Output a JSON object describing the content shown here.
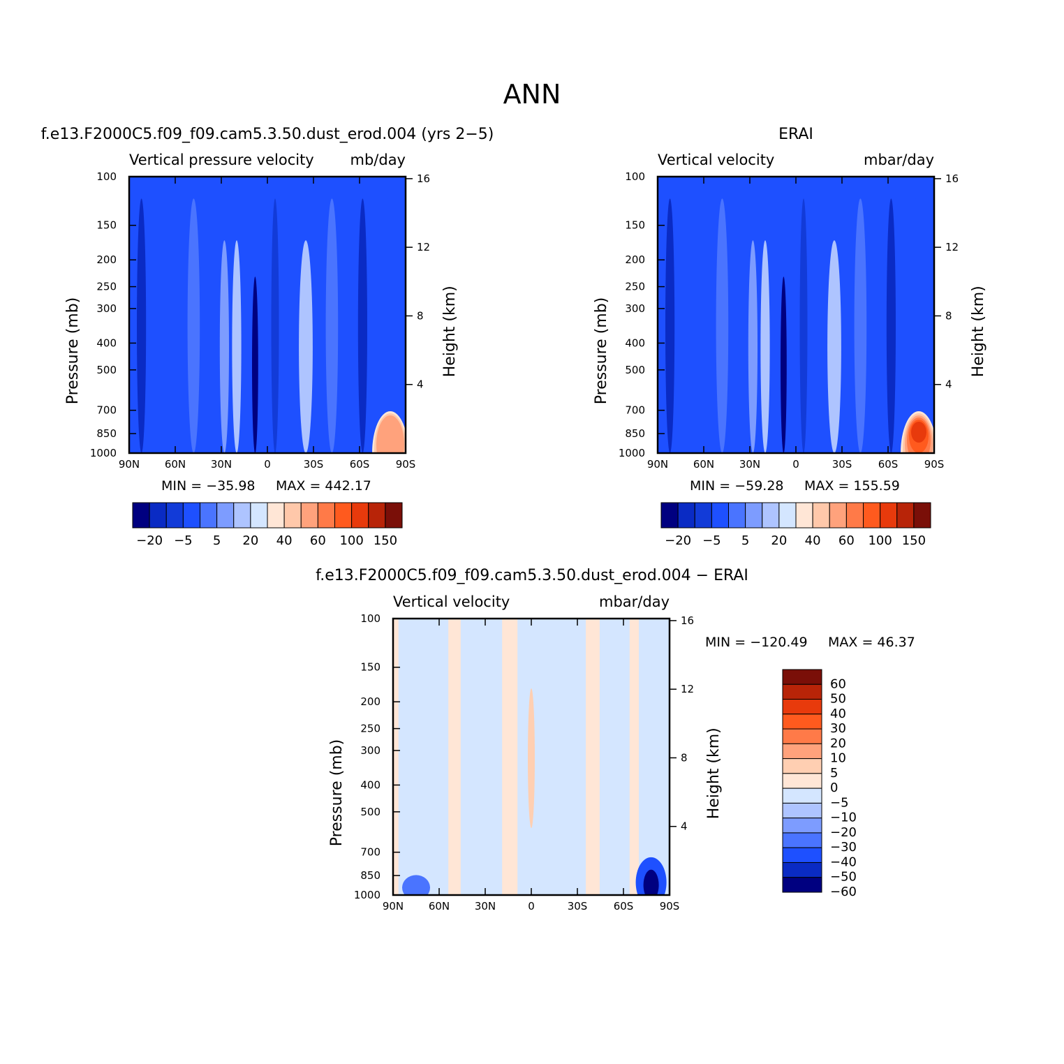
{
  "figure": {
    "title": "ANN"
  },
  "chart_data": [
    {
      "type": "heatmap",
      "id": "model",
      "title": "f.e13.F2000C5.f09_f09.cam5.3.50.dust_erod.004 (yrs 2−5)",
      "left_label": "Vertical pressure velocity",
      "right_label": "mb/day",
      "ylabel": "Pressure (mb)",
      "y2label": "Height (km)",
      "xticks": [
        "90N",
        "60N",
        "30N",
        "0",
        "30S",
        "60S",
        "90S"
      ],
      "yticks": [
        "100",
        "150",
        "200",
        "250",
        "300",
        "400",
        "500",
        "700",
        "850",
        "1000"
      ],
      "y2ticks": [
        "16",
        "12",
        "8",
        "4"
      ],
      "xlim": [
        -90,
        90
      ],
      "ylim": [
        1000,
        100
      ],
      "yscale": "log",
      "min_label": "MIN = −35.98",
      "max_label": "MAX = 442.17",
      "colorbar": {
        "orientation": "horizontal",
        "colors": [
          "#000080",
          "#0a2bc4",
          "#123bd8",
          "#1e50ff",
          "#4a74ff",
          "#7d9cff",
          "#aec4ff",
          "#d4e6ff",
          "#ffe6d6",
          "#ffc8aa",
          "#ffa27c",
          "#ff7a48",
          "#ff5a1e",
          "#e83a0c",
          "#b82408",
          "#7a0f08"
        ],
        "labels": [
          "−20",
          "−5",
          "5",
          "20",
          "40",
          "60",
          "100",
          "150"
        ]
      }
    },
    {
      "type": "heatmap",
      "id": "obs",
      "title": "ERAI",
      "left_label": "Vertical velocity",
      "right_label": "mbar/day",
      "ylabel": "Pressure (mb)",
      "y2label": "Height (km)",
      "xticks": [
        "90N",
        "60N",
        "30N",
        "0",
        "30S",
        "60S",
        "90S"
      ],
      "yticks": [
        "100",
        "150",
        "200",
        "250",
        "300",
        "400",
        "500",
        "700",
        "850",
        "1000"
      ],
      "y2ticks": [
        "16",
        "12",
        "8",
        "4"
      ],
      "xlim": [
        -90,
        90
      ],
      "ylim": [
        1000,
        100
      ],
      "yscale": "log",
      "min_label": "MIN = −59.28",
      "max_label": "MAX = 155.59",
      "colorbar": {
        "orientation": "horizontal",
        "colors": [
          "#000080",
          "#0a2bc4",
          "#123bd8",
          "#1e50ff",
          "#4a74ff",
          "#7d9cff",
          "#aec4ff",
          "#d4e6ff",
          "#ffe6d6",
          "#ffc8aa",
          "#ffa27c",
          "#ff7a48",
          "#ff5a1e",
          "#e83a0c",
          "#b82408",
          "#7a0f08"
        ],
        "labels": [
          "−20",
          "−5",
          "5",
          "20",
          "40",
          "60",
          "100",
          "150"
        ]
      }
    },
    {
      "type": "heatmap",
      "id": "diff",
      "title": "f.e13.F2000C5.f09_f09.cam5.3.50.dust_erod.004 − ERAI",
      "left_label": "Vertical velocity",
      "right_label": "mbar/day",
      "ylabel": "Pressure (mb)",
      "y2label": "Height (km)",
      "xticks": [
        "90N",
        "60N",
        "30N",
        "0",
        "30S",
        "60S",
        "90S"
      ],
      "yticks": [
        "100",
        "150",
        "200",
        "250",
        "300",
        "400",
        "500",
        "700",
        "850",
        "1000"
      ],
      "y2ticks": [
        "16",
        "12",
        "8",
        "4"
      ],
      "xlim": [
        -90,
        90
      ],
      "ylim": [
        1000,
        100
      ],
      "yscale": "log",
      "min_label": "MIN = −120.49",
      "max_label": "MAX =  46.37",
      "colorbar": {
        "orientation": "vertical",
        "colors": [
          "#7a0f08",
          "#b82408",
          "#e83a0c",
          "#ff5a1e",
          "#ff7a48",
          "#ffa27c",
          "#ffcfb2",
          "#ffe6d6",
          "#d4e6ff",
          "#aec4ff",
          "#7d9cff",
          "#4a74ff",
          "#1e50ff",
          "#0a2bc4",
          "#000080"
        ],
        "labels": [
          "60",
          "50",
          "40",
          "30",
          "20",
          "10",
          "5",
          "0",
          "−5",
          "−10",
          "−20",
          "−30",
          "−40",
          "−50",
          "−60"
        ]
      }
    }
  ]
}
